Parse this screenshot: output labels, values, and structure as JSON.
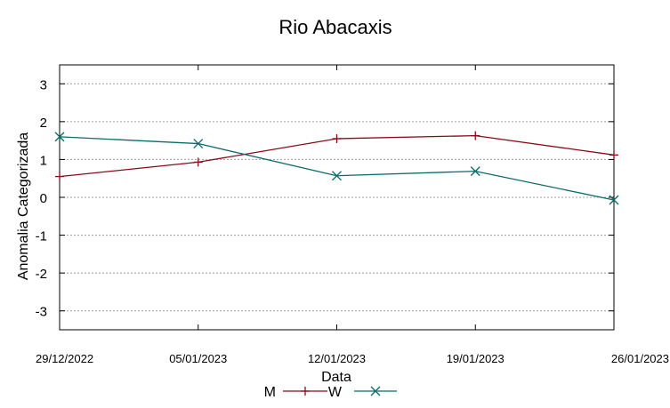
{
  "chart_data": {
    "type": "line",
    "title": "Rio Abacaxis",
    "xlabel": "Data",
    "ylabel": "Anomalia Categorizada",
    "categories": [
      "29/12/2022",
      "05/01/2023",
      "12/01/2023",
      "19/01/2023",
      "26/01/2023"
    ],
    "ylim": [
      -3.5,
      3.5
    ],
    "yticks": [
      3,
      2,
      1,
      0,
      -1,
      -2,
      -3
    ],
    "grid": true,
    "legend": "bottom-center",
    "series": [
      {
        "name": "M",
        "color": "#8b0a1a",
        "marker": "plus",
        "values": [
          0.55,
          0.93,
          1.55,
          1.63,
          1.12
        ]
      },
      {
        "name": "W",
        "color": "#0b6b6b",
        "marker": "x",
        "values": [
          1.6,
          1.42,
          0.57,
          0.69,
          -0.07
        ]
      }
    ]
  }
}
